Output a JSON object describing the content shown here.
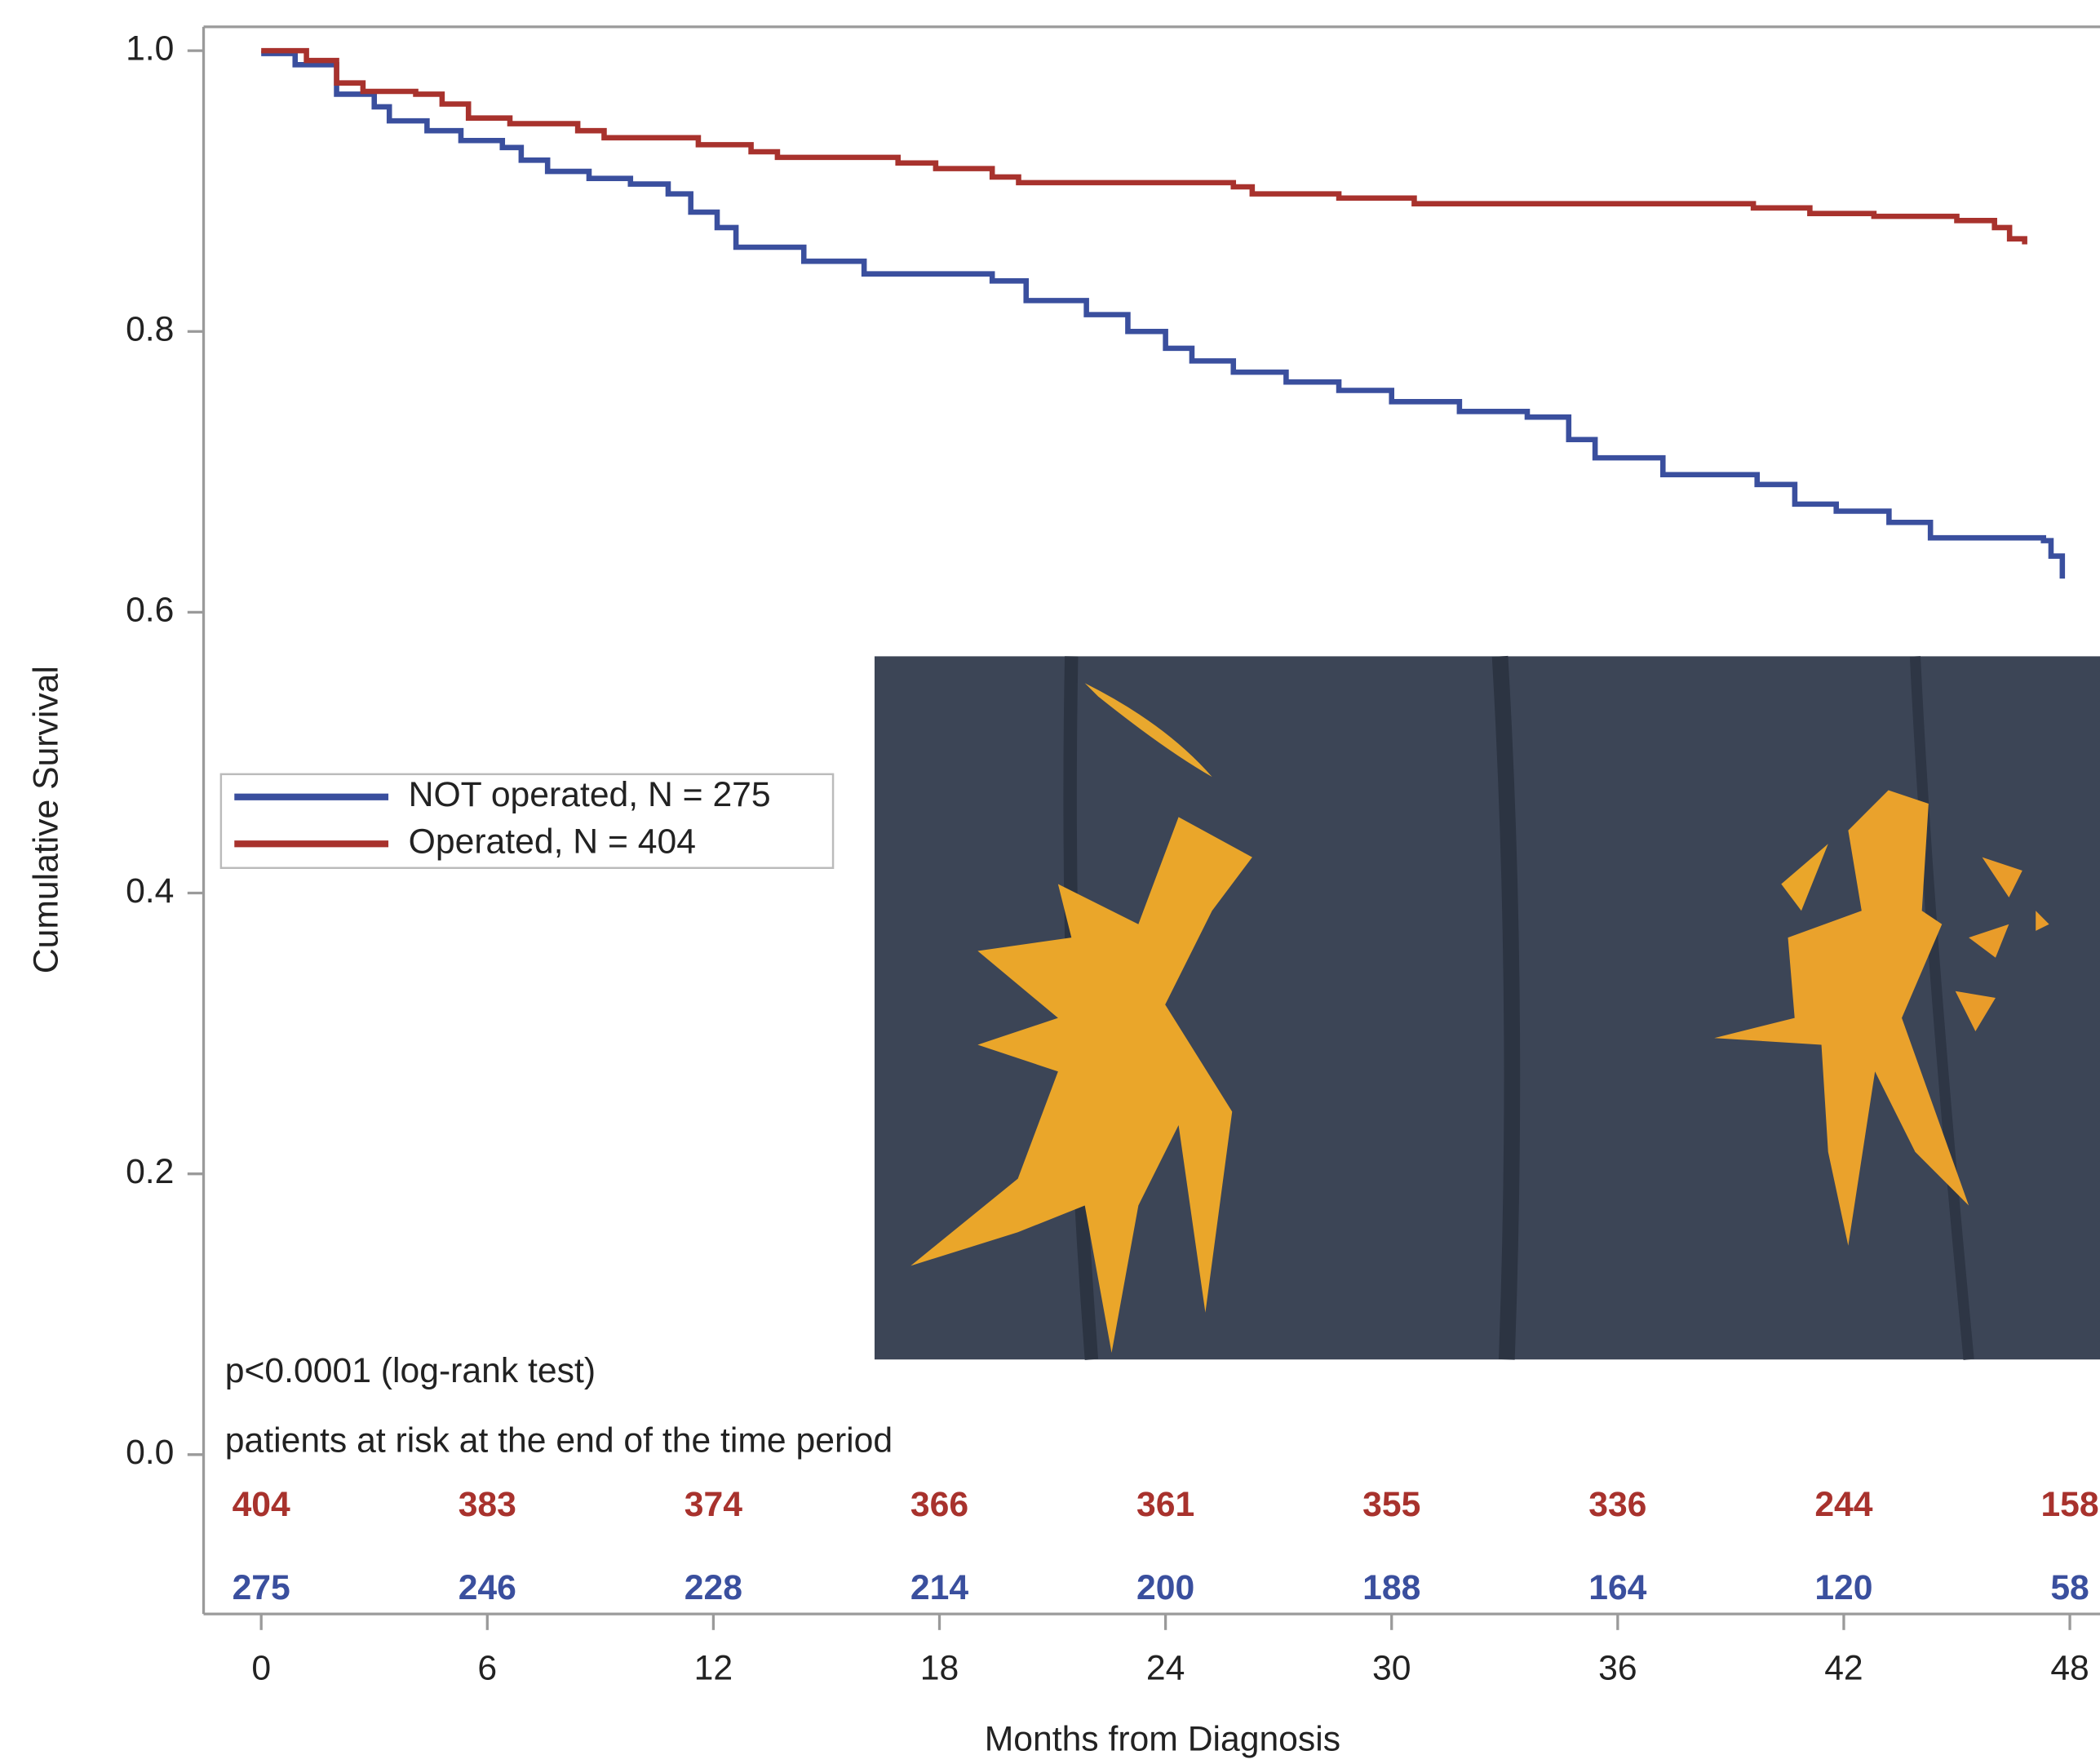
{
  "chart_data": {
    "type": "line",
    "step": true,
    "xlabel": "Months from Diagnosis",
    "ylabel": "Cumulative Survival",
    "xlim": [
      -1.53,
      48.8
    ],
    "ylim": [
      -0.1135,
      1.017
    ],
    "xticks": [
      0,
      6,
      12,
      18,
      24,
      30,
      36,
      42,
      48
    ],
    "yticks": [
      {
        "value": 1,
        "label": "1.0"
      },
      0.8,
      0.6,
      0.4,
      0.2,
      {
        "value": 0,
        "label": "0.0"
      }
    ],
    "series": [
      {
        "name": "NOT operated, N = 275",
        "color": "#3a4f9e",
        "x": [
          0,
          0.9,
          2,
          3,
          3.4,
          4.4,
          5.3,
          6.4,
          6.9,
          7.6,
          8.7,
          9.8,
          10.8,
          11.4,
          12.1,
          12.6,
          14.4,
          16,
          19.4,
          20.3,
          21.9,
          23,
          24,
          24.7,
          25.8,
          27.2,
          28.6,
          30,
          31.8,
          33.6,
          34.7,
          35.4,
          37.2,
          39.7,
          40.7,
          41.8,
          43.2,
          44.3,
          47.3,
          47.5,
          47.8
        ],
        "values": [
          0.998,
          0.99,
          0.969,
          0.96,
          0.95,
          0.943,
          0.936,
          0.931,
          0.922,
          0.914,
          0.909,
          0.905,
          0.898,
          0.885,
          0.874,
          0.86,
          0.85,
          0.841,
          0.836,
          0.822,
          0.812,
          0.8,
          0.788,
          0.779,
          0.771,
          0.764,
          0.758,
          0.75,
          0.743,
          0.739,
          0.723,
          0.71,
          0.698,
          0.691,
          0.677,
          0.672,
          0.664,
          0.653,
          0.651,
          0.64,
          0.624
        ]
      },
      {
        "name": "Operated, N = 404",
        "color": "#a8322d",
        "x": [
          0,
          1.2,
          2,
          2.7,
          4.1,
          4.8,
          5.5,
          6.6,
          8.4,
          9.1,
          11.6,
          13,
          13.7,
          16.9,
          17.9,
          19.4,
          20.1,
          25.8,
          26.3,
          28.6,
          30.6,
          39.6,
          41.1,
          42.8,
          45,
          46,
          46.4,
          46.8
        ],
        "values": [
          1.0,
          0.993,
          0.977,
          0.971,
          0.969,
          0.962,
          0.952,
          0.948,
          0.943,
          0.938,
          0.933,
          0.928,
          0.924,
          0.92,
          0.916,
          0.91,
          0.906,
          0.903,
          0.898,
          0.895,
          0.891,
          0.888,
          0.884,
          0.882,
          0.879,
          0.874,
          0.866,
          0.862
        ]
      }
    ],
    "annotation": "p<0.0001 (log-rank test)",
    "at_risk_title": "patients at risk at the end of the time period",
    "at_risk": [
      {
        "color": "#a8322d",
        "values": [
          404,
          383,
          374,
          366,
          361,
          355,
          336,
          244,
          158
        ]
      },
      {
        "color": "#3a4f9e",
        "values": [
          275,
          246,
          228,
          214,
          200,
          188,
          164,
          120,
          58
        ]
      }
    ]
  }
}
